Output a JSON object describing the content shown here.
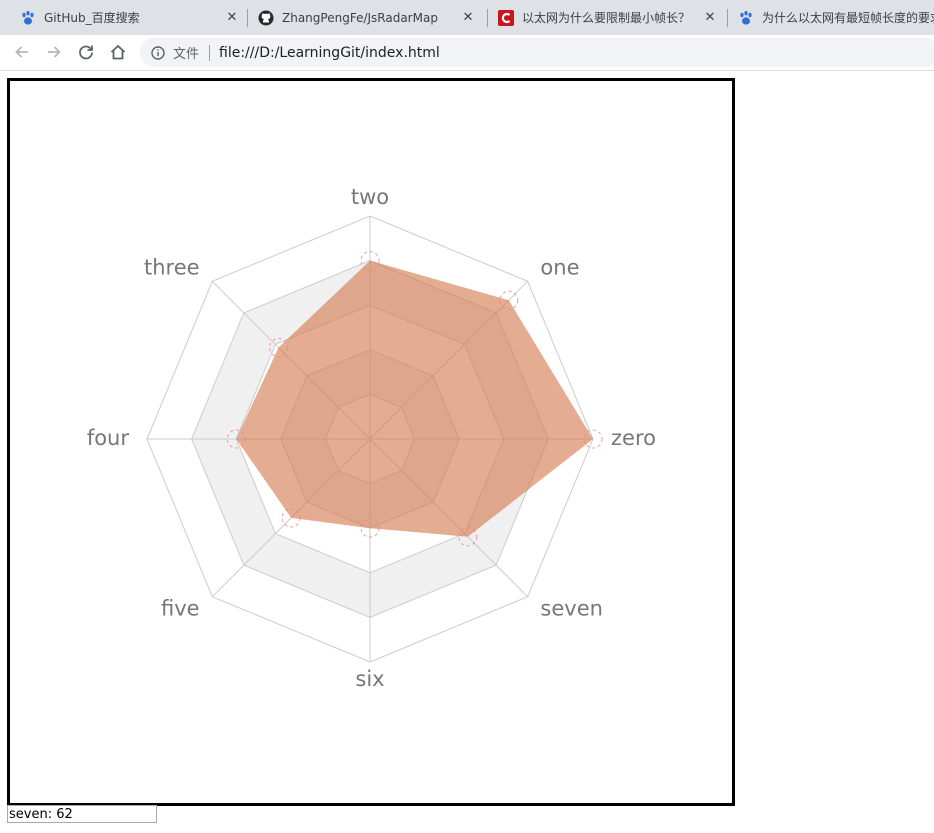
{
  "browser": {
    "tabs": [
      {
        "title": "GitHub_百度搜索",
        "icon": "baidu-paw-icon"
      },
      {
        "title": "ZhangPengFe/JsRadarMap",
        "icon": "github-icon"
      },
      {
        "title": "以太网为什么要限制最小帧长？",
        "icon": "csdn-icon"
      },
      {
        "title": "为什么以太网有最短帧长度的要求",
        "icon": "baidu-paw-icon"
      }
    ],
    "address": {
      "scheme_label": "文件",
      "url": "file:///D:/LearningGit/index.html"
    },
    "close_glyph": "✕"
  },
  "page": {
    "readout": "seven: 62"
  },
  "chart_data": {
    "type": "radar",
    "axes": [
      "zero",
      "one",
      "two",
      "three",
      "four",
      "five",
      "six",
      "seven"
    ],
    "values": [
      100,
      88,
      80,
      58,
      60,
      50,
      40,
      62
    ],
    "max": 100,
    "rings": 5,
    "colors": {
      "fill": "#d2764a",
      "fill_opacity": 0.6,
      "grid_line": "#cccccc",
      "band_fill": "#f0f0f0",
      "point_stroke": "#f08080",
      "label": "#777777"
    }
  }
}
